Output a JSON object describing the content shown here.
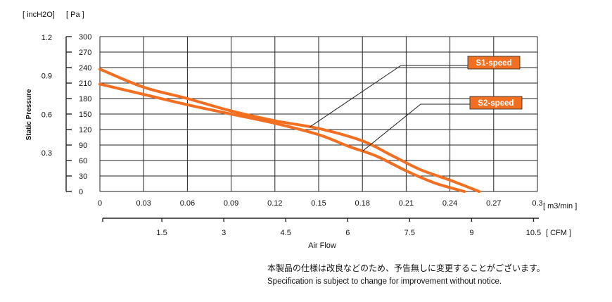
{
  "chart_data": {
    "type": "line",
    "y_axis_left_inner": {
      "unit": "[ Pa ]",
      "ticks": [
        "0",
        "30",
        "60",
        "90",
        "120",
        "150",
        "180",
        "210",
        "240",
        "270",
        "300"
      ],
      "range": [
        0,
        300
      ]
    },
    "y_axis_left_outer": {
      "unit": "[ incH2O]",
      "ticks": [
        "0.3",
        "0.6",
        "0.9",
        "1.2"
      ],
      "label": "Static Pressure"
    },
    "x_axis_top": {
      "unit": "[ m3/min ]",
      "ticks": [
        "0",
        "0.03",
        "0.06",
        "0.09",
        "0.12",
        "0.15",
        "0.18",
        "0.21",
        "0.24",
        "0.27",
        "0.3"
      ],
      "range": [
        0,
        0.3
      ]
    },
    "x_axis_bottom": {
      "unit": "[ CFM ]",
      "ticks": [
        "1.5",
        "3",
        "4.5",
        "6",
        "7.5",
        "9",
        "10.5"
      ]
    },
    "xlabel": "Air   Flow",
    "grid": true,
    "line_color": "#f26f21",
    "series": [
      {
        "name": "S1-speed",
        "x": [
          0,
          0.03,
          0.06,
          0.09,
          0.12,
          0.15,
          0.18,
          0.2,
          0.22,
          0.24,
          0.26
        ],
        "y": [
          237,
          202,
          180,
          156,
          137,
          122,
          98,
          70,
          42,
          22,
          0
        ]
      },
      {
        "name": "S2-speed",
        "x": [
          0,
          0.03,
          0.06,
          0.09,
          0.12,
          0.15,
          0.17,
          0.19,
          0.21,
          0.23,
          0.25
        ],
        "y": [
          208,
          188,
          168,
          150,
          132,
          110,
          88,
          68,
          40,
          16,
          0
        ]
      }
    ]
  },
  "notes": {
    "ja": "本製品の仕様は改良などのため、予告無しに変更することがございます。",
    "en": "Specification is subject to change for improvement without notice."
  }
}
